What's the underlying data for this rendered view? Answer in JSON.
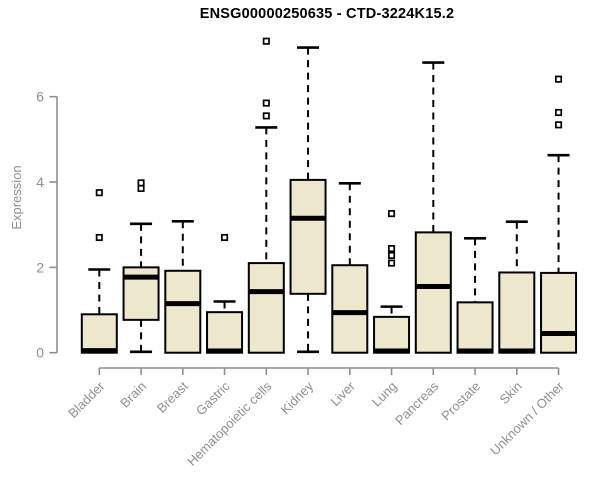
{
  "chart_data": {
    "type": "boxplot",
    "title": "ENSG00000250635 - CTD-3224K15.2",
    "ylabel": "Expression",
    "ylim": [
      0,
      7.4
    ],
    "yticks": [
      0,
      2,
      4,
      6
    ],
    "grid": false,
    "categories": [
      "Bladder",
      "Brain",
      "Breast",
      "Gastric",
      "Hematopoietic cells",
      "Kidney",
      "Liver",
      "Lung",
      "Pancreas",
      "Prostate",
      "Skin",
      "Unknown / Other"
    ],
    "boxes": [
      {
        "category": "Bladder",
        "min": 0,
        "q1": 0,
        "median": 0.05,
        "q3": 0.9,
        "max": 1.95,
        "outliers": [
          2.7,
          3.75
        ]
      },
      {
        "category": "Brain",
        "min": 0.02,
        "q1": 0.77,
        "median": 1.77,
        "q3": 2.0,
        "max": 3.02,
        "outliers": [
          3.85,
          3.98
        ]
      },
      {
        "category": "Breast",
        "min": 0,
        "q1": 0,
        "median": 1.15,
        "q3": 1.92,
        "max": 3.08,
        "outliers": []
      },
      {
        "category": "Gastric",
        "min": 0,
        "q1": 0,
        "median": 0.04,
        "q3": 0.95,
        "max": 1.2,
        "outliers": [
          2.7
        ]
      },
      {
        "category": "Hematopoietic cells",
        "min": 0,
        "q1": 0,
        "median": 1.43,
        "q3": 2.1,
        "max": 5.28,
        "outliers": [
          5.55,
          5.85,
          7.3
        ]
      },
      {
        "category": "Kidney",
        "min": 0.02,
        "q1": 1.38,
        "median": 3.15,
        "q3": 4.05,
        "max": 7.15,
        "outliers": []
      },
      {
        "category": "Liver",
        "min": 0,
        "q1": 0,
        "median": 0.94,
        "q3": 2.05,
        "max": 3.97,
        "outliers": []
      },
      {
        "category": "Lung",
        "min": 0,
        "q1": 0,
        "median": 0.04,
        "q3": 0.84,
        "max": 1.08,
        "outliers": [
          2.1,
          2.28,
          2.44,
          3.26
        ]
      },
      {
        "category": "Pancreas",
        "min": 0,
        "q1": 0,
        "median": 1.55,
        "q3": 2.82,
        "max": 6.8,
        "outliers": []
      },
      {
        "category": "Prostate",
        "min": 0,
        "q1": 0,
        "median": 0.04,
        "q3": 1.18,
        "max": 2.68,
        "outliers": []
      },
      {
        "category": "Skin",
        "min": 0,
        "q1": 0,
        "median": 0.04,
        "q3": 1.88,
        "max": 3.07,
        "outliers": []
      },
      {
        "category": "Unknown / Other",
        "min": 0,
        "q1": 0,
        "median": 0.45,
        "q3": 1.87,
        "max": 4.63,
        "outliers": [
          5.34,
          5.63,
          6.41
        ]
      }
    ],
    "style": {
      "box_fill": "#ede8cd",
      "box_stroke": "#000000",
      "axis_color": "#8f8f8f",
      "label_color": "#8f8f8f",
      "title_color": "#000000"
    }
  }
}
